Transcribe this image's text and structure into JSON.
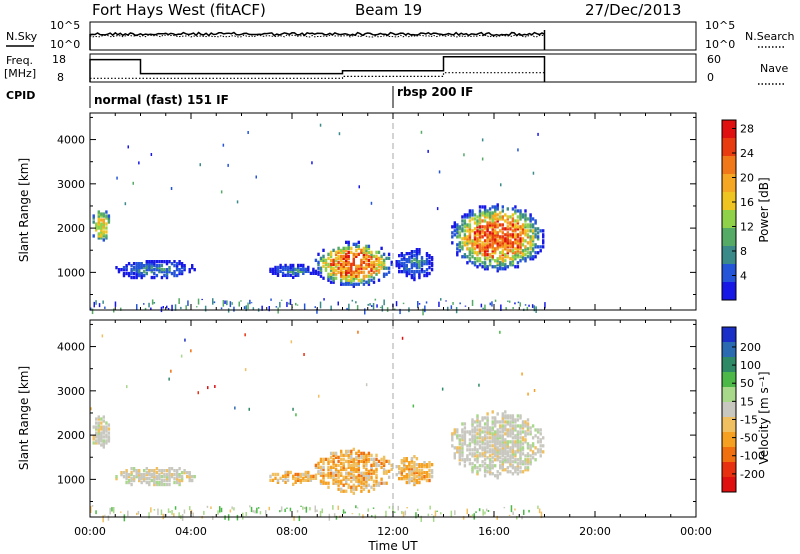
{
  "header": {
    "title": "Fort Hays West (fitACF)",
    "beam": "Beam 19",
    "date": "27/Dec/2013"
  },
  "top_panels": {
    "nsky_label": "N.Sky",
    "nsearch_label": "N.Search",
    "noise_tick_high": "10^5",
    "noise_tick_low": "10^0",
    "freq_label": "Freq.",
    "freq_unit": "[MHz]",
    "freq_tick_high": "18",
    "freq_tick_low": "8",
    "nave_label": "Nave",
    "nave_tick_high": "60",
    "nave_tick_low": "0",
    "cpid_label": "CPID",
    "cpid_left": "normal (fast) 151 IF",
    "cpid_right": "rbsp 200 IF"
  },
  "chart_data": [
    {
      "type": "heatmap",
      "name": "power",
      "ylabel": "Slant Range [km]",
      "ylim": [
        150,
        4600
      ],
      "yticks": [
        "1000",
        "2000",
        "3000",
        "4000"
      ],
      "ytick_values": [
        1000,
        2000,
        3000,
        4000
      ],
      "xlim_hours": [
        0,
        24
      ],
      "colorbar_label": "Power [dB]",
      "colorbar_ticks": [
        "4",
        "8",
        "12",
        "16",
        "20",
        "24",
        "28"
      ],
      "colorbar_colors": [
        "#1818e6",
        "#2454d8",
        "#3a8a8a",
        "#55aa66",
        "#8fd24a",
        "#f0c420",
        "#f5a623",
        "#f07818",
        "#e83c10",
        "#e01010"
      ],
      "grid": false,
      "echo_regions": [
        {
          "t0": 0.0,
          "t1": 0.8,
          "r0": 1650,
          "r1": 2400,
          "level": "medium"
        },
        {
          "t0": 0.9,
          "t1": 4.2,
          "r0": 800,
          "r1": 1250,
          "level": "low"
        },
        {
          "t0": 7.0,
          "t1": 9.0,
          "r0": 850,
          "r1": 1150,
          "level": "low"
        },
        {
          "t0": 8.8,
          "t1": 12.0,
          "r0": 650,
          "r1": 1650,
          "level": "high"
        },
        {
          "t0": 12.0,
          "t1": 13.6,
          "r0": 800,
          "r1": 1500,
          "level": "low"
        },
        {
          "t0": 14.2,
          "t1": 18.0,
          "r0": 1000,
          "r1": 2500,
          "level": "high"
        },
        {
          "t0": 0.0,
          "t1": 18.0,
          "r0": 170,
          "r1": 420,
          "level": "ground"
        }
      ]
    },
    {
      "type": "heatmap",
      "name": "velocity",
      "ylabel": "Slant Range [km]",
      "ylim": [
        150,
        4600
      ],
      "yticks": [
        "1000",
        "2000",
        "3000",
        "4000"
      ],
      "ytick_values": [
        1000,
        2000,
        3000,
        4000
      ],
      "xlim_hours": [
        0,
        24
      ],
      "xticks": [
        "00:00",
        "04:00",
        "08:00",
        "12:00",
        "16:00",
        "20:00",
        "00:00"
      ],
      "xtick_values": [
        0,
        4,
        8,
        12,
        16,
        20,
        24
      ],
      "xlabel": "Time UT",
      "colorbar_label": "Velocity [m s⁻¹]",
      "colorbar_ticks": [
        "200",
        "100",
        "50",
        "15",
        "-15",
        "-50",
        "-100",
        "-200"
      ],
      "colorbar_colors": [
        "#1a2ec8",
        "#2a6ab0",
        "#2e8a66",
        "#4cb848",
        "#a8d88a",
        "#c8c8c0",
        "#f0c060",
        "#f5a020",
        "#f07010",
        "#e83010",
        "#e01010"
      ],
      "grid": false,
      "echo_regions": [
        {
          "t0": 0.0,
          "t1": 0.8,
          "r0": 1650,
          "r1": 2400,
          "level": "grey"
        },
        {
          "t0": 0.9,
          "t1": 4.2,
          "r0": 800,
          "r1": 1250,
          "level": "grey"
        },
        {
          "t0": 7.0,
          "t1": 9.0,
          "r0": 850,
          "r1": 1150,
          "level": "orange"
        },
        {
          "t0": 8.8,
          "t1": 12.0,
          "r0": 650,
          "r1": 1650,
          "level": "orange"
        },
        {
          "t0": 12.0,
          "t1": 13.6,
          "r0": 800,
          "r1": 1500,
          "level": "orange"
        },
        {
          "t0": 14.2,
          "t1": 18.0,
          "r0": 1000,
          "r1": 2500,
          "level": "grey"
        },
        {
          "t0": 0.0,
          "t1": 18.0,
          "r0": 170,
          "r1": 420,
          "level": "ground"
        }
      ]
    }
  ],
  "freq_trace": {
    "times": [
      0,
      2,
      2,
      10,
      10,
      14,
      14,
      18
    ],
    "mhz": [
      16,
      16,
      11,
      11,
      12,
      12,
      17,
      17
    ]
  },
  "nave_trace": {
    "times": [
      0,
      10,
      10,
      14,
      14,
      18
    ],
    "values": [
      8,
      8,
      12,
      12,
      20,
      20
    ]
  },
  "cpid_change_hour": 12,
  "data_end_hour": 18
}
